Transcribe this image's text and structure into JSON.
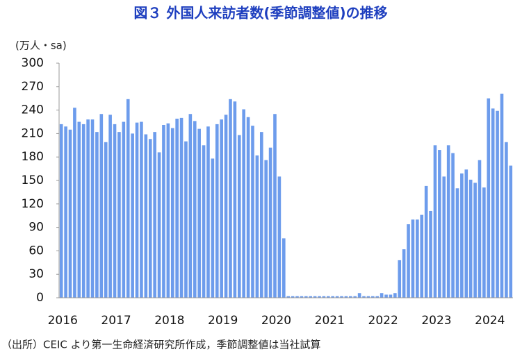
{
  "chart_data": {
    "type": "bar",
    "title": "図３ 外国人来訪者数(季節調整値)の推移",
    "unit_label": "(万人・sa)",
    "note": "（出所）CEIC より第一生命経済研究所作成，季節調整値は当社試算",
    "color": "#6d9cec",
    "ylim": [
      0,
      300
    ],
    "yticks": [
      0,
      30,
      60,
      90,
      120,
      150,
      180,
      210,
      240,
      270,
      300
    ],
    "grid": false,
    "categories": [
      "2016",
      null,
      null,
      null,
      null,
      null,
      null,
      null,
      null,
      null,
      null,
      null,
      "2017",
      null,
      null,
      null,
      null,
      null,
      null,
      null,
      null,
      null,
      null,
      null,
      "2018",
      null,
      null,
      null,
      null,
      null,
      null,
      null,
      null,
      null,
      null,
      null,
      "2019",
      null,
      null,
      null,
      null,
      null,
      null,
      null,
      null,
      null,
      null,
      null,
      "2020",
      null,
      null,
      null,
      null,
      null,
      null,
      null,
      null,
      null,
      null,
      null,
      "2021",
      null,
      null,
      null,
      null,
      null,
      null,
      null,
      null,
      null,
      null,
      null,
      "2022",
      null,
      null,
      null,
      null,
      null,
      null,
      null,
      null,
      null,
      null,
      null,
      "2023",
      null,
      null,
      null,
      null,
      null,
      null,
      null,
      null,
      null,
      null,
      null,
      "2024",
      null,
      null,
      null,
      null,
      null
    ],
    "values": [
      222,
      219,
      215,
      243,
      225,
      222,
      228,
      228,
      212,
      235,
      199,
      234,
      222,
      212,
      225,
      254,
      210,
      224,
      225,
      209,
      203,
      212,
      186,
      221,
      223,
      217,
      229,
      230,
      200,
      235,
      226,
      216,
      195,
      219,
      178,
      222,
      228,
      234,
      254,
      251,
      208,
      241,
      231,
      220,
      182,
      212,
      176,
      192,
      235,
      155,
      76,
      2,
      2,
      2,
      2,
      2,
      2,
      2,
      2,
      2,
      2,
      2,
      2,
      2,
      2,
      2,
      2,
      6,
      2,
      2,
      2,
      2,
      6,
      4,
      4,
      6,
      48,
      62,
      94,
      100,
      100,
      106,
      143,
      111,
      195,
      189,
      155,
      195,
      185,
      140,
      159,
      164,
      151,
      147,
      176,
      141,
      255,
      242,
      239,
      261,
      199,
      169
    ]
  }
}
